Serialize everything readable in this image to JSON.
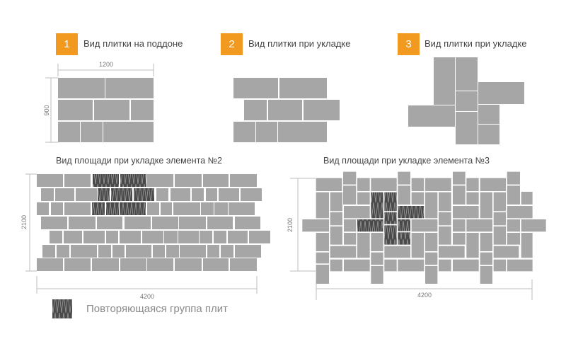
{
  "panels": [
    {
      "number": "1",
      "title": "Вид плитки на поддоне",
      "width_label": "1200",
      "height_label": "900"
    },
    {
      "number": "2",
      "title": "Вид плитки при укладке"
    },
    {
      "number": "3",
      "title": "Вид плитки при укладке"
    }
  ],
  "areas": [
    {
      "title": "Вид площади при укладке элемента №2",
      "height_label": "2100",
      "width_label": "4200"
    },
    {
      "title": "Вид площади при укладке элемента №3",
      "height_label": "2100",
      "width_label": "4200"
    }
  ],
  "legend": {
    "label": "Повторяющаяся группа плит"
  },
  "colors": {
    "accent": "#f29a1f",
    "tile": "#a6a6a6",
    "repeating_group": "#4a4a4a",
    "dimension_line": "#bdbdbd"
  }
}
